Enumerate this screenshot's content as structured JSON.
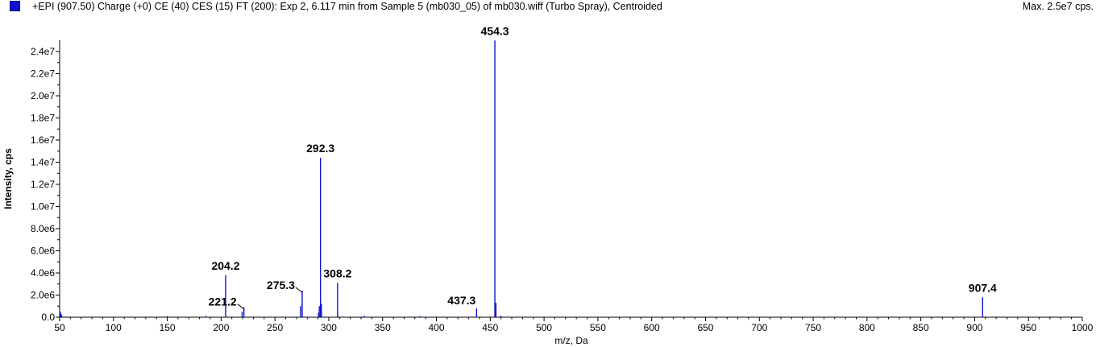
{
  "header": {
    "title": "+EPI (907.50) Charge (+0) CE (40) CES (15) FT (200): Exp 2, 6.117 min from Sample 5 (mb030_05) of mb030.wiff (Turbo Spray), Centroided",
    "max": "Max. 2.5e7 cps."
  },
  "colors": {
    "spectrum": "#1010d0",
    "swatch": "#1010d0",
    "axis": "#000000"
  },
  "chart_data": {
    "type": "bar",
    "title": "",
    "xlabel": "m/z, Da",
    "ylabel": "Intensity, cps",
    "xlim": [
      50,
      1000
    ],
    "ylim": [
      0,
      25000000
    ],
    "x_ticks": [
      50,
      100,
      150,
      200,
      250,
      300,
      350,
      400,
      450,
      500,
      550,
      600,
      650,
      700,
      750,
      800,
      850,
      900,
      950,
      1000
    ],
    "x_tick_labels": [
      "50",
      "100",
      "150",
      "200",
      "250",
      "300",
      "350",
      "400",
      "450",
      "500",
      "550",
      "600",
      "650",
      "700",
      "750",
      "800",
      "850",
      "900",
      "950",
      "1000"
    ],
    "y_ticks": [
      0,
      2000000,
      4000000,
      6000000,
      8000000,
      10000000,
      12000000,
      14000000,
      16000000,
      18000000,
      20000000,
      22000000,
      24000000
    ],
    "y_tick_labels": [
      "0.0",
      "2.0e6",
      "4.0e6",
      "6.0e6",
      "8.0e6",
      "1.0e7",
      "1.2e7",
      "1.4e7",
      "1.6e7",
      "1.8e7",
      "2.0e7",
      "2.2e7",
      "2.4e7"
    ],
    "grid": false,
    "legend": "top-left",
    "peaks": [
      {
        "mz": 50.5,
        "intensity": 500000
      },
      {
        "mz": 51.0,
        "intensity": 300000
      },
      {
        "mz": 150.0,
        "intensity": 100000
      },
      {
        "mz": 186.0,
        "intensity": 120000
      },
      {
        "mz": 204.2,
        "intensity": 3800000,
        "label": "204.2"
      },
      {
        "mz": 219.5,
        "intensity": 500000
      },
      {
        "mz": 221.2,
        "intensity": 900000,
        "label": "221.2"
      },
      {
        "mz": 275.3,
        "intensity": 2400000,
        "label": "275.3"
      },
      {
        "mz": 273.8,
        "intensity": 1000000
      },
      {
        "mz": 290.5,
        "intensity": 400000
      },
      {
        "mz": 291.2,
        "intensity": 1000000
      },
      {
        "mz": 292.3,
        "intensity": 14400000,
        "label": "292.3"
      },
      {
        "mz": 293.2,
        "intensity": 1200000
      },
      {
        "mz": 308.2,
        "intensity": 3100000,
        "label": "308.2"
      },
      {
        "mz": 333.0,
        "intensity": 120000
      },
      {
        "mz": 385.0,
        "intensity": 100000
      },
      {
        "mz": 437.3,
        "intensity": 800000,
        "label": "437.3"
      },
      {
        "mz": 454.3,
        "intensity": 25000000,
        "label": "454.3"
      },
      {
        "mz": 455.3,
        "intensity": 1300000
      },
      {
        "mz": 460.0,
        "intensity": 120000
      },
      {
        "mz": 907.4,
        "intensity": 1800000,
        "label": "907.4"
      }
    ]
  }
}
